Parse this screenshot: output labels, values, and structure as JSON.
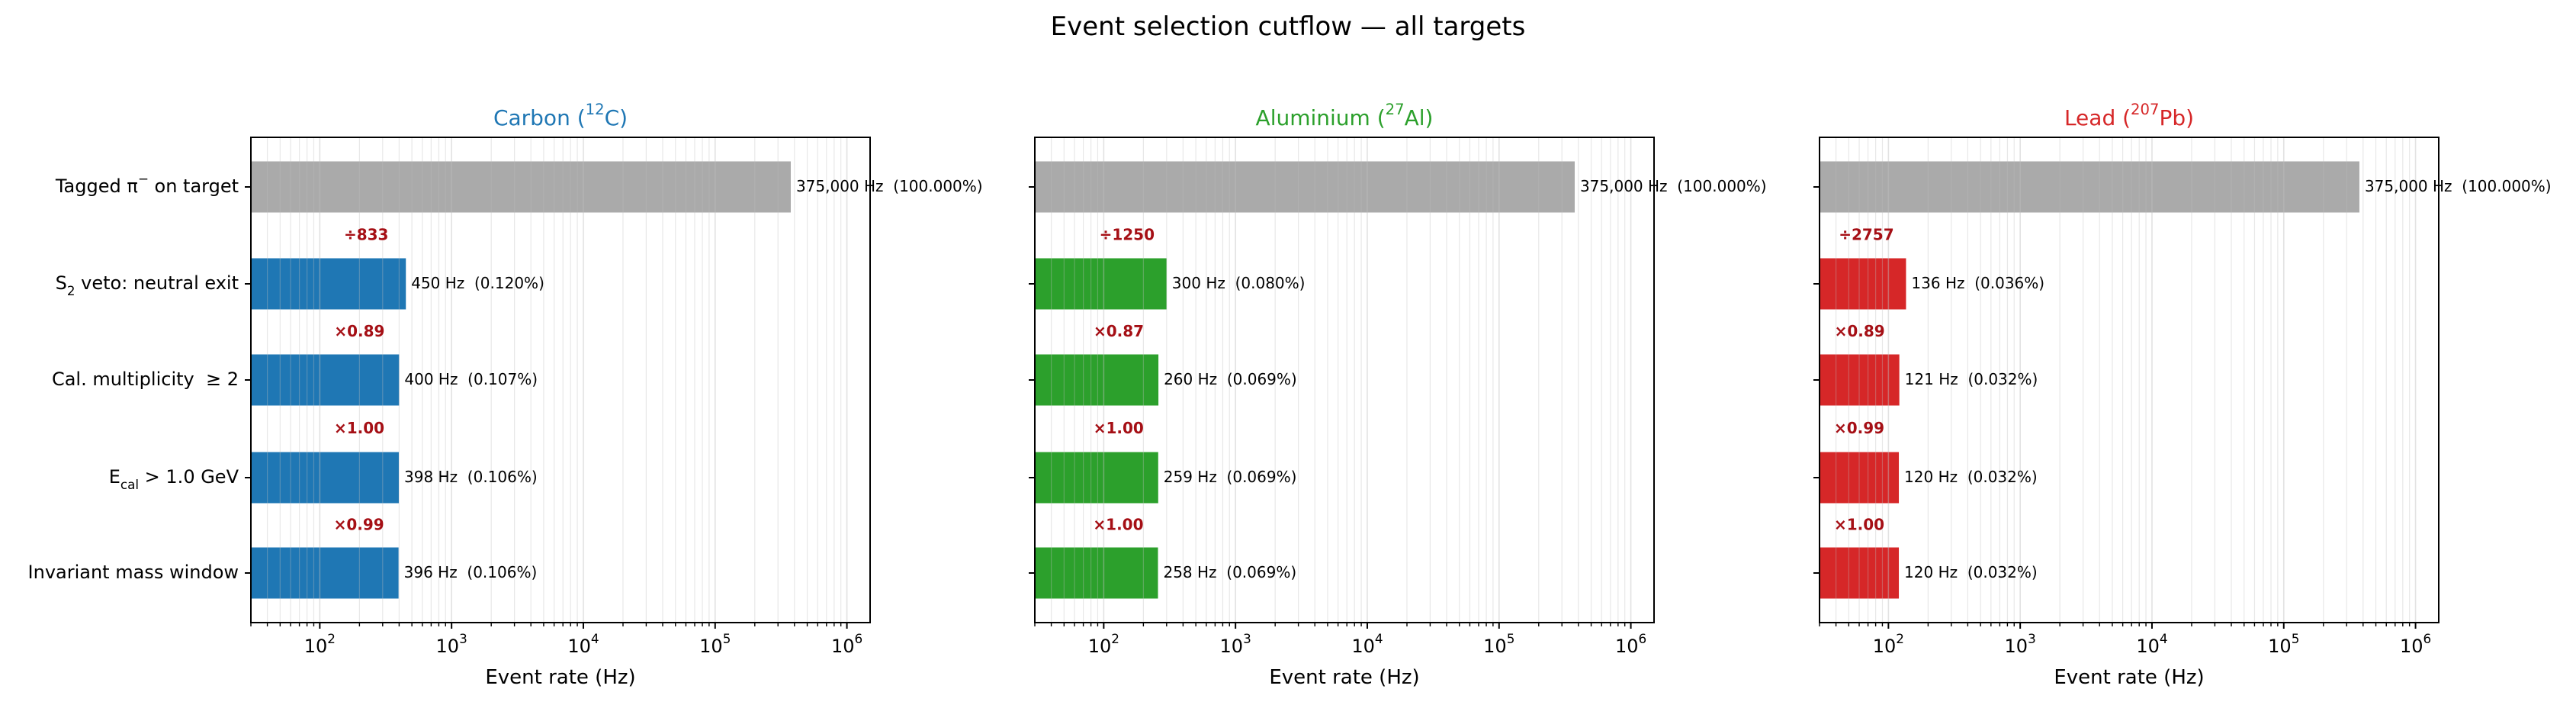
{
  "title": "Event selection cutflow — all targets",
  "chart_data": [
    {
      "type": "bar",
      "orientation": "horizontal",
      "title": "Carbon (^{12}C)",
      "title_color": "#1f77b4",
      "categories": [
        "Tagged π^{−} on target",
        "S_{2} veto: neutral exit",
        "Cal. multiplicity  ≥ 2",
        "E_{cal} > 1.0 GeV",
        "Invariant mass window"
      ],
      "values": [
        375000,
        450,
        400,
        398,
        396
      ],
      "value_labels": [
        "375,000 Hz  (100.000%)",
        "450 Hz  (0.120%)",
        "400 Hz  (0.107%)",
        "398 Hz  (0.106%)",
        "396 Hz  (0.106%)"
      ],
      "step_labels": [
        "÷833",
        "×0.89",
        "×1.00",
        "×0.99"
      ],
      "colors": [
        "#aaaaaa",
        "#1f77b4",
        "#1f77b4",
        "#1f77b4",
        "#1f77b4"
      ],
      "xlabel": "Event rate (Hz)",
      "xscale": "log",
      "xlim": [
        30,
        1500000
      ],
      "xticks": [
        {
          "value": 100,
          "label": "10^{2}"
        },
        {
          "value": 1000,
          "label": "10^{3}"
        },
        {
          "value": 10000,
          "label": "10^{4}"
        },
        {
          "value": 100000,
          "label": "10^{5}"
        },
        {
          "value": 1000000,
          "label": "10^{6}"
        }
      ],
      "xticks_minor": [
        30,
        40,
        50,
        60,
        70,
        80,
        90,
        200,
        300,
        400,
        500,
        600,
        700,
        800,
        900,
        2000,
        3000,
        4000,
        5000,
        6000,
        7000,
        8000,
        9000,
        20000,
        30000,
        40000,
        50000,
        60000,
        70000,
        80000,
        90000,
        200000,
        300000,
        400000,
        500000,
        600000,
        700000,
        800000,
        900000
      ],
      "grid": true
    },
    {
      "type": "bar",
      "orientation": "horizontal",
      "title": "Aluminium (^{27}Al)",
      "title_color": "#2ca02c",
      "categories": [
        null,
        null,
        null,
        null,
        null
      ],
      "values": [
        375000,
        300,
        260,
        259,
        258
      ],
      "value_labels": [
        "375,000 Hz  (100.000%)",
        "300 Hz  (0.080%)",
        "260 Hz  (0.069%)",
        "259 Hz  (0.069%)",
        "258 Hz  (0.069%)"
      ],
      "step_labels": [
        "÷1250",
        "×0.87",
        "×1.00",
        "×1.00"
      ],
      "colors": [
        "#aaaaaa",
        "#2ca02c",
        "#2ca02c",
        "#2ca02c",
        "#2ca02c"
      ],
      "xlabel": "Event rate (Hz)",
      "xscale": "log",
      "xlim": [
        30,
        1500000
      ],
      "xticks": [
        {
          "value": 100,
          "label": "10^{2}"
        },
        {
          "value": 1000,
          "label": "10^{3}"
        },
        {
          "value": 10000,
          "label": "10^{4}"
        },
        {
          "value": 100000,
          "label": "10^{5}"
        },
        {
          "value": 1000000,
          "label": "10^{6}"
        }
      ],
      "xticks_minor": [
        30,
        40,
        50,
        60,
        70,
        80,
        90,
        200,
        300,
        400,
        500,
        600,
        700,
        800,
        900,
        2000,
        3000,
        4000,
        5000,
        6000,
        7000,
        8000,
        9000,
        20000,
        30000,
        40000,
        50000,
        60000,
        70000,
        80000,
        90000,
        200000,
        300000,
        400000,
        500000,
        600000,
        700000,
        800000,
        900000
      ],
      "grid": true
    },
    {
      "type": "bar",
      "orientation": "horizontal",
      "title": "Lead (^{207}Pb)",
      "title_color": "#d62728",
      "categories": [
        null,
        null,
        null,
        null,
        null
      ],
      "values": [
        375000,
        136,
        121,
        120,
        120
      ],
      "value_labels": [
        "375,000 Hz  (100.000%)",
        "136 Hz  (0.036%)",
        "121 Hz  (0.032%)",
        "120 Hz  (0.032%)",
        "120 Hz  (0.032%)"
      ],
      "step_labels": [
        "÷2757",
        "×0.89",
        "×0.99",
        "×1.00"
      ],
      "colors": [
        "#aaaaaa",
        "#d62728",
        "#d62728",
        "#d62728",
        "#d62728"
      ],
      "xlabel": "Event rate (Hz)",
      "xscale": "log",
      "xlim": [
        30,
        1500000
      ],
      "xticks": [
        {
          "value": 100,
          "label": "10^{2}"
        },
        {
          "value": 1000,
          "label": "10^{3}"
        },
        {
          "value": 10000,
          "label": "10^{4}"
        },
        {
          "value": 100000,
          "label": "10^{5}"
        },
        {
          "value": 1000000,
          "label": "10^{6}"
        }
      ],
      "xticks_minor": [
        30,
        40,
        50,
        60,
        70,
        80,
        90,
        200,
        300,
        400,
        500,
        600,
        700,
        800,
        900,
        2000,
        3000,
        4000,
        5000,
        6000,
        7000,
        8000,
        9000,
        20000,
        30000,
        40000,
        50000,
        60000,
        70000,
        80000,
        90000,
        200000,
        300000,
        400000,
        500000,
        600000,
        700000,
        800000,
        900000
      ],
      "grid": true
    }
  ]
}
